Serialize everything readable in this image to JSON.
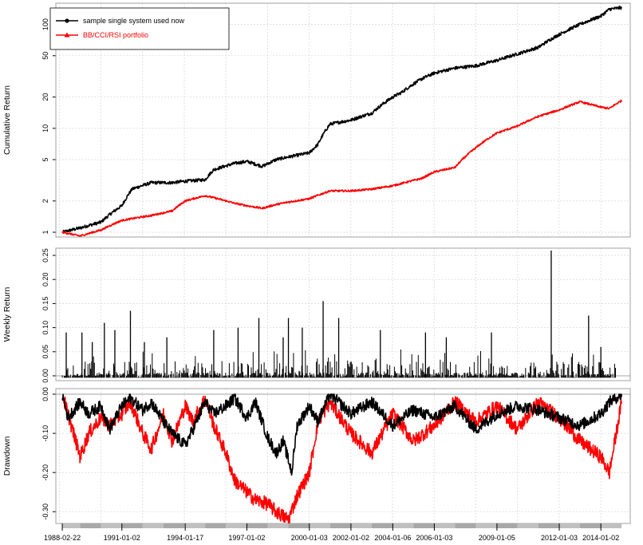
{
  "chart_data": [
    {
      "type": "line",
      "panel": "cumulative",
      "ylabel": "Cumulative Return",
      "yscale": "log",
      "yticks": [
        "1",
        "2",
        "5",
        "10",
        "20",
        "50",
        "100"
      ],
      "ylim": [
        0.9,
        160
      ],
      "legend_placement": "top-left",
      "legend": [
        {
          "label": "sample single system used now",
          "color": "#000000",
          "marker": "circle"
        },
        {
          "label": "BB/CCI/RSI portfolio",
          "color": "#ff0000",
          "marker": "triangle"
        }
      ],
      "series": [
        {
          "name": "sample single system used now",
          "color": "#000000",
          "x": [
            "1988-02-22",
            "1989-01-01",
            "1990-01-01",
            "1991-01-02",
            "1991-07-01",
            "1992-06-01",
            "1993-06-01",
            "1994-01-17",
            "1995-01-01",
            "1995-06-01",
            "1996-06-01",
            "1997-01-02",
            "1997-10-01",
            "1998-06-01",
            "1999-01-01",
            "2000-01-03",
            "2000-06-01",
            "2001-01-01",
            "2002-01-02",
            "2003-01-01",
            "2004-01-06",
            "2004-06-01",
            "2005-06-01",
            "2006-01-03",
            "2007-01-01",
            "2008-01-01",
            "2009-01-05",
            "2010-01-01",
            "2011-01-01",
            "2012-01-03",
            "2013-01-01",
            "2014-01-02",
            "2014-06-01",
            "2015-01-01"
          ],
          "values": [
            1.0,
            1.1,
            1.25,
            1.8,
            2.6,
            3.0,
            3.0,
            3.1,
            3.2,
            4.0,
            4.6,
            4.8,
            4.3,
            5.0,
            5.3,
            5.8,
            7.0,
            11.0,
            12.0,
            14.0,
            20.0,
            22.0,
            30.0,
            34.0,
            38.0,
            40.0,
            45.0,
            52.0,
            60.0,
            80.0,
            100.0,
            120.0,
            140.0,
            145.0
          ]
        },
        {
          "name": "BB/CCI/RSI portfolio",
          "color": "#ff0000",
          "x": [
            "1988-02-22",
            "1989-01-01",
            "1990-01-01",
            "1991-01-02",
            "1992-06-01",
            "1993-06-01",
            "1994-01-17",
            "1995-01-01",
            "1996-06-01",
            "1997-01-02",
            "1997-10-01",
            "1998-06-01",
            "1999-01-01",
            "2000-01-03",
            "2001-01-01",
            "2002-01-02",
            "2003-01-01",
            "2004-01-06",
            "2005-06-01",
            "2006-01-03",
            "2007-01-01",
            "2008-01-01",
            "2009-01-05",
            "2010-01-01",
            "2011-01-01",
            "2012-01-03",
            "2013-01-01",
            "2014-01-02",
            "2014-06-01",
            "2015-01-01"
          ],
          "values": [
            1.0,
            0.92,
            1.05,
            1.3,
            1.45,
            1.6,
            2.0,
            2.25,
            1.9,
            1.8,
            1.7,
            1.85,
            1.95,
            2.1,
            2.5,
            2.5,
            2.6,
            2.8,
            3.3,
            3.8,
            4.2,
            6.5,
            9.0,
            10.5,
            13.0,
            15.0,
            18.0,
            16.0,
            15.5,
            18.5
          ]
        }
      ]
    },
    {
      "type": "line",
      "panel": "weekly",
      "ylabel": "Weekly Return",
      "yticks": [
        "0.00",
        "0.05",
        "0.10",
        "0.15",
        "0.20",
        "0.25"
      ],
      "ylim": [
        -0.01,
        0.265
      ],
      "series": [
        {
          "name": "sample single system used now",
          "color": "#000000",
          "spikes": [
            {
              "x": "1988-05-01",
              "y": 0.09
            },
            {
              "x": "1989-02-01",
              "y": 0.09
            },
            {
              "x": "1989-08-01",
              "y": 0.07
            },
            {
              "x": "1990-03-01",
              "y": 0.11
            },
            {
              "x": "1990-09-01",
              "y": 0.095
            },
            {
              "x": "1991-06-01",
              "y": 0.135
            },
            {
              "x": "1992-02-01",
              "y": 0.07
            },
            {
              "x": "1993-03-01",
              "y": 0.08
            },
            {
              "x": "1995-06-01",
              "y": 0.095
            },
            {
              "x": "1996-08-01",
              "y": 0.1
            },
            {
              "x": "1997-08-01",
              "y": 0.12
            },
            {
              "x": "1998-10-01",
              "y": 0.08
            },
            {
              "x": "1999-01-01",
              "y": 0.12
            },
            {
              "x": "1999-09-01",
              "y": 0.1
            },
            {
              "x": "2000-09-01",
              "y": 0.155
            },
            {
              "x": "2001-06-01",
              "y": 0.12
            },
            {
              "x": "2003-06-01",
              "y": 0.095
            },
            {
              "x": "2005-08-01",
              "y": 0.09
            },
            {
              "x": "2006-08-01",
              "y": 0.08
            },
            {
              "x": "2008-10-01",
              "y": 0.09
            },
            {
              "x": "2011-08-15",
              "y": 0.26
            },
            {
              "x": "2013-06-01",
              "y": 0.125
            },
            {
              "x": "2014-01-02",
              "y": 0.06
            }
          ],
          "baseline_noise": [
            -0.005,
            0.05
          ]
        }
      ]
    },
    {
      "type": "line",
      "panel": "drawdown",
      "ylabel": "Drawdown",
      "yticks": [
        "0.00",
        "-0.10",
        "-0.20",
        "-0.30"
      ],
      "ylim": [
        -0.325,
        0.005
      ],
      "xticks": [
        "1988-02-22",
        "1991-01-02",
        "1994-01-17",
        "1997-01-02",
        "2000-01-03",
        "2002-01-02",
        "2004-01-06",
        "2006-01-03",
        "2009-01-05",
        "2012-01-03",
        "2014-01-02"
      ],
      "series": [
        {
          "name": "sample single system used now",
          "color": "#000000",
          "x": [
            "1988-02-22",
            "1988-06-01",
            "1989-01-01",
            "1989-06-01",
            "1990-01-01",
            "1990-06-01",
            "1991-01-02",
            "1991-06-01",
            "1992-01-01",
            "1992-06-01",
            "1993-01-01",
            "1993-06-01",
            "1994-01-17",
            "1994-06-01",
            "1995-01-01",
            "1995-06-01",
            "1996-01-01",
            "1996-06-01",
            "1997-01-02",
            "1997-06-01",
            "1998-01-01",
            "1998-06-01",
            "1998-10-01",
            "1999-03-01",
            "1999-06-01",
            "2000-01-03",
            "2000-06-01",
            "2001-01-01",
            "2002-01-02",
            "2003-01-01",
            "2004-01-06",
            "2005-01-01",
            "2006-01-03",
            "2007-01-01",
            "2008-01-01",
            "2009-01-05",
            "2010-01-01",
            "2011-01-01",
            "2012-01-03",
            "2013-01-01",
            "2014-01-02",
            "2014-06-01",
            "2015-01-01"
          ],
          "values": [
            0.0,
            -0.06,
            -0.02,
            -0.05,
            -0.03,
            -0.09,
            -0.03,
            -0.01,
            -0.04,
            -0.02,
            -0.07,
            -0.1,
            -0.13,
            -0.09,
            -0.02,
            -0.05,
            -0.03,
            -0.01,
            -0.06,
            -0.02,
            -0.11,
            -0.15,
            -0.12,
            -0.2,
            -0.08,
            -0.03,
            -0.07,
            0.0,
            -0.05,
            -0.02,
            -0.08,
            -0.04,
            -0.06,
            -0.03,
            -0.09,
            -0.05,
            -0.03,
            -0.04,
            -0.06,
            -0.08,
            -0.05,
            -0.02,
            0.0
          ]
        },
        {
          "name": "BB/CCI/RSI portfolio",
          "color": "#ff0000",
          "x": [
            "1988-02-22",
            "1988-06-01",
            "1989-01-01",
            "1989-06-01",
            "1990-01-01",
            "1990-06-01",
            "1991-01-02",
            "1991-06-01",
            "1992-01-01",
            "1992-06-01",
            "1993-01-01",
            "1993-06-01",
            "1994-01-17",
            "1994-06-01",
            "1995-01-01",
            "1995-06-01",
            "1996-01-01",
            "1996-06-01",
            "1997-01-02",
            "1997-06-01",
            "1998-01-01",
            "1998-06-01",
            "1999-01-01",
            "1999-06-01",
            "2000-01-03",
            "2000-06-01",
            "2001-01-01",
            "2002-01-02",
            "2003-01-01",
            "2004-01-06",
            "2005-01-01",
            "2006-01-03",
            "2007-01-01",
            "2008-01-01",
            "2009-01-05",
            "2010-01-01",
            "2011-01-01",
            "2012-01-03",
            "2013-01-01",
            "2014-01-02",
            "2014-06-01",
            "2015-01-01"
          ],
          "values": [
            0.0,
            -0.05,
            -0.16,
            -0.1,
            -0.06,
            -0.08,
            -0.05,
            -0.02,
            -0.1,
            -0.14,
            -0.05,
            -0.12,
            -0.03,
            -0.07,
            -0.01,
            -0.08,
            -0.15,
            -0.22,
            -0.25,
            -0.27,
            -0.28,
            -0.3,
            -0.32,
            -0.26,
            -0.2,
            -0.07,
            -0.02,
            -0.1,
            -0.15,
            -0.05,
            -0.12,
            -0.08,
            -0.02,
            -0.07,
            -0.03,
            -0.09,
            -0.02,
            -0.06,
            -0.12,
            -0.16,
            -0.2,
            -0.02
          ]
        }
      ]
    }
  ]
}
